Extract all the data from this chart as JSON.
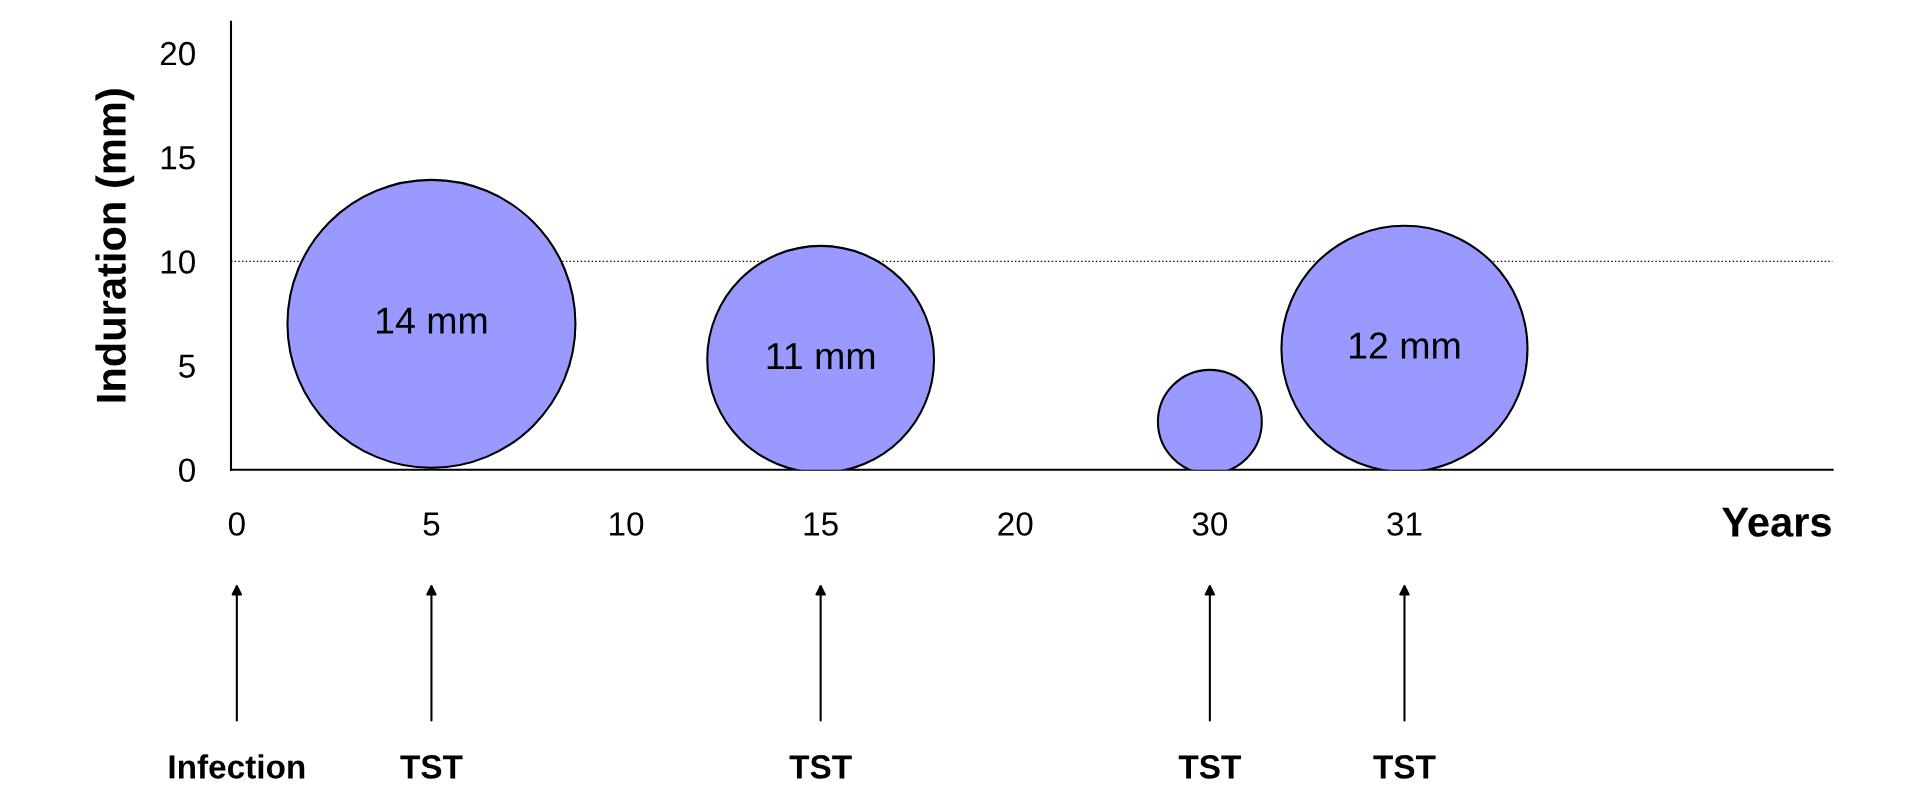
{
  "chart_data": {
    "type": "bubble",
    "ylabel": "Induration (mm)",
    "categories": [
      "0",
      "5",
      "10",
      "15",
      "20",
      "30",
      "31"
    ],
    "series": [
      {
        "color": "#9999ff",
        "values": [
          null,
          7,
          null,
          5.3,
          null,
          2.3,
          5.8
        ],
        "sizes": [
          null,
          1,
          null,
          0.62,
          null,
          0.13,
          0.73
        ]
      }
    ],
    "ylim": [
      0,
      21.5
    ],
    "yticks": [
      0,
      5,
      10,
      15,
      20
    ],
    "ref_lines": [
      {
        "axis": "y",
        "value": 10,
        "line_style": "dotted",
        "color": "#000000"
      }
    ],
    "annotations": [
      {
        "text": "14 mm",
        "x": "5",
        "y": 7
      },
      {
        "text": "11 mm",
        "x": "15",
        "y": 5.3
      },
      {
        "text": "12 mm",
        "x": "31",
        "y": 5.8
      },
      "Years",
      "Infection",
      "TST",
      "TST",
      "TST",
      "TST"
    ],
    "grid": false,
    "legend": false
  }
}
